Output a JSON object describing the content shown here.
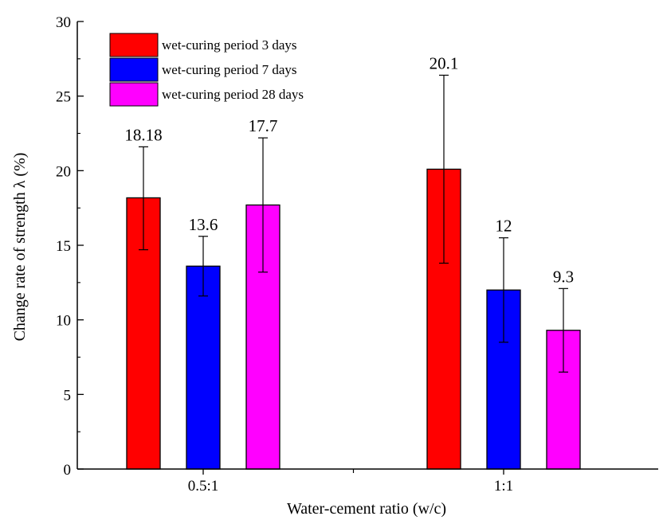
{
  "chart_data": {
    "type": "bar",
    "categories": [
      "0.5:1",
      "1:1"
    ],
    "series": [
      {
        "name": "wet-curing period 3 days",
        "color": "#ff0000",
        "values": [
          18.18,
          20.1
        ],
        "data_labels": [
          "18.18",
          "20.1"
        ],
        "error_low": [
          14.7,
          13.8
        ],
        "error_high": [
          21.6,
          26.4
        ]
      },
      {
        "name": "wet-curing period 7 days",
        "color": "#0000ff",
        "values": [
          13.6,
          12
        ],
        "data_labels": [
          "13.6",
          "12"
        ],
        "error_low": [
          11.6,
          8.5
        ],
        "error_high": [
          15.6,
          15.5
        ]
      },
      {
        "name": "wet-curing period 28 days",
        "color": "#ff00ff",
        "values": [
          17.7,
          9.3
        ],
        "data_labels": [
          "17.7",
          "9.3"
        ],
        "error_low": [
          13.2,
          6.5
        ],
        "error_high": [
          22.2,
          12.1
        ]
      }
    ],
    "xlabel": "Water-cement ratio (w/c)",
    "ylabel": "Change rate of strength λ (%)",
    "ylim": [
      0,
      30
    ],
    "yticks": [
      0,
      5,
      10,
      15,
      20,
      25,
      30
    ],
    "ytick_labels": [
      "0",
      "5",
      "10",
      "15",
      "20",
      "25",
      "30"
    ],
    "grid": false,
    "legend_position": "top-left"
  }
}
